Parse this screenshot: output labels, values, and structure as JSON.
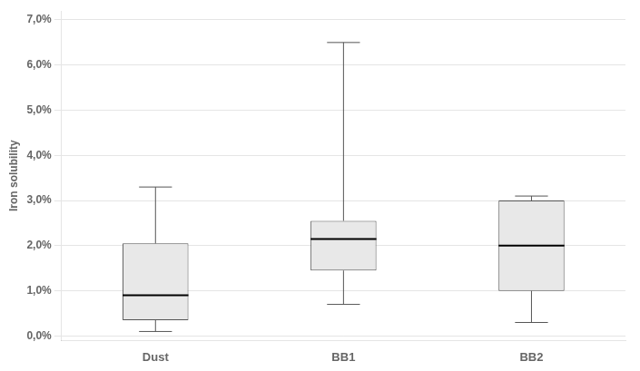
{
  "chart_data": {
    "type": "box",
    "categories": [
      "Dust",
      "BB1",
      "BB2"
    ],
    "values": [
      {
        "whislo": 0.001,
        "q1": 0.0035,
        "med": 0.009,
        "q3": 0.0205,
        "whishi": 0.033
      },
      {
        "whislo": 0.007,
        "q1": 0.0145,
        "med": 0.0215,
        "q3": 0.0255,
        "whishi": 0.065
      },
      {
        "whislo": 0.003,
        "q1": 0.01,
        "med": 0.02,
        "q3": 0.03,
        "whishi": 0.031
      }
    ],
    "ylabel": "Iron solubility",
    "ylim": [
      -0.001,
      0.072
    ],
    "yticks": [
      {
        "value": 0.0,
        "label": "0,0%"
      },
      {
        "value": 0.01,
        "label": "1,0%"
      },
      {
        "value": 0.02,
        "label": "2,0%"
      },
      {
        "value": 0.03,
        "label": "3,0%"
      },
      {
        "value": 0.04,
        "label": "4,0%"
      },
      {
        "value": 0.05,
        "label": "5,0%"
      },
      {
        "value": 0.06,
        "label": "6,0%"
      },
      {
        "value": 0.07,
        "label": "7,0%"
      }
    ],
    "color": "#e8e8e8",
    "grid": true
  }
}
